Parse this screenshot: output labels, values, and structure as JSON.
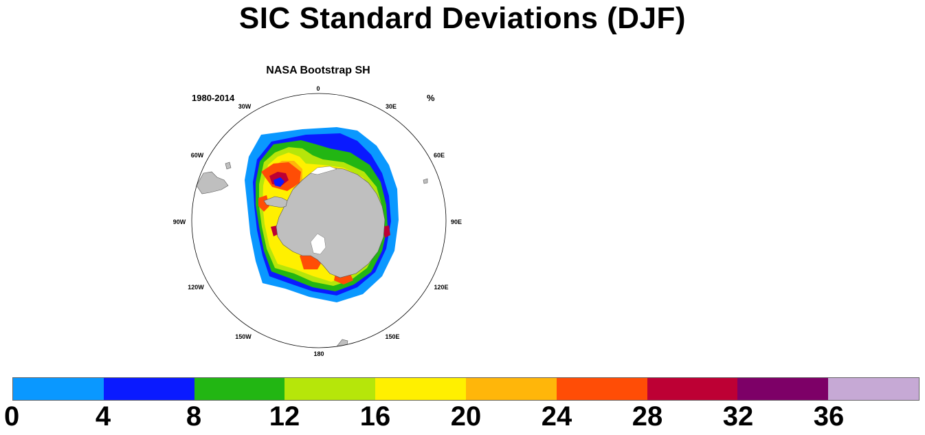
{
  "title": "SIC Standard Deviations (DJF)",
  "subtitle": "NASA Bootstrap SH",
  "period_label": "1980-2014",
  "units_label": "%",
  "longitude_labels": [
    {
      "text": "0",
      "name": "lon-label-0"
    },
    {
      "text": "30E",
      "name": "lon-label-30e"
    },
    {
      "text": "60E",
      "name": "lon-label-60e"
    },
    {
      "text": "90E",
      "name": "lon-label-90e"
    },
    {
      "text": "120E",
      "name": "lon-label-120e"
    },
    {
      "text": "150E",
      "name": "lon-label-150e"
    },
    {
      "text": "180",
      "name": "lon-label-180"
    },
    {
      "text": "150W",
      "name": "lon-label-150w"
    },
    {
      "text": "120W",
      "name": "lon-label-120w"
    },
    {
      "text": "90W",
      "name": "lon-label-90w"
    },
    {
      "text": "60W",
      "name": "lon-label-60w"
    },
    {
      "text": "30W",
      "name": "lon-label-30w"
    }
  ],
  "colorbar": {
    "ticks": [
      "0",
      "4",
      "8",
      "12",
      "16",
      "20",
      "24",
      "28",
      "32",
      "36"
    ],
    "colors": [
      "#0a98ff",
      "#0a1aff",
      "#22b613",
      "#b6e60a",
      "#fff000",
      "#ffb60a",
      "#ff4d06",
      "#bd0034",
      "#7d0067",
      "#c6a9d5"
    ]
  },
  "colors": {
    "land": "#bfbfbf",
    "ice_shelf": "#ffffff",
    "outline": "#000000"
  }
}
